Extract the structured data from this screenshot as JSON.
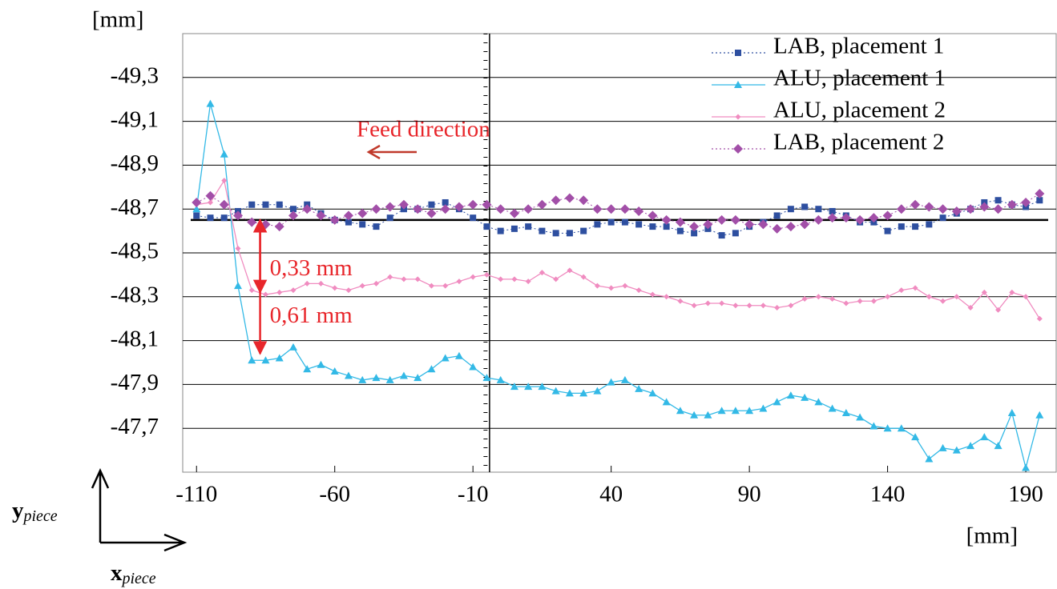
{
  "chart_data": {
    "type": "line",
    "y_label": "[mm]",
    "x_label": "[mm]",
    "y_symbol": "y",
    "y_symbol_sub": "piece",
    "x_symbol": "x",
    "x_symbol_sub": "piece",
    "feed_label": "Feed direction",
    "xlim": [
      -115,
      201
    ],
    "ylim": [
      -47.5,
      -49.5
    ],
    "xticks": [
      -110,
      -60,
      -10,
      40,
      90,
      140,
      190
    ],
    "yticks": [
      {
        "value": -49.3,
        "label": "-49,3"
      },
      {
        "value": -49.1,
        "label": "-49,1"
      },
      {
        "value": -48.9,
        "label": "-48,9"
      },
      {
        "value": -48.7,
        "label": "-48,7"
      },
      {
        "value": -48.5,
        "label": "-48,5"
      },
      {
        "value": -48.3,
        "label": "-48,3"
      },
      {
        "value": -48.1,
        "label": "-48,1"
      },
      {
        "value": -47.9,
        "label": "-47,9"
      },
      {
        "value": -47.7,
        "label": "-47,7"
      }
    ],
    "grid": true,
    "legend": "top-right",
    "reference_y": -48.65,
    "reference_x": -4,
    "annotations": [
      {
        "text": "0,33 mm",
        "x": -87,
        "y_from": -48.65,
        "y_to": -48.32
      },
      {
        "text": "0,61 mm",
        "x": -87,
        "y_from": -48.65,
        "y_to": -48.04
      }
    ],
    "x": [
      -110,
      -105,
      -100,
      -95,
      -90,
      -85,
      -80,
      -75,
      -70,
      -65,
      -60,
      -55,
      -50,
      -45,
      -40,
      -35,
      -30,
      -25,
      -20,
      -15,
      -10,
      -5,
      0,
      5,
      10,
      15,
      20,
      25,
      30,
      35,
      40,
      45,
      50,
      55,
      60,
      65,
      70,
      75,
      80,
      85,
      90,
      95,
      100,
      105,
      110,
      115,
      120,
      125,
      130,
      135,
      140,
      145,
      150,
      155,
      160,
      165,
      170,
      175,
      180,
      185,
      190,
      195
    ],
    "series": [
      {
        "name": "LAB, placement 1",
        "color": "#2e4fa0",
        "marker": "square",
        "line": "dashed",
        "values": [
          -48.67,
          -48.66,
          -48.66,
          -48.69,
          -48.72,
          -48.72,
          -48.72,
          -48.7,
          -48.72,
          -48.68,
          -48.65,
          -48.64,
          -48.63,
          -48.62,
          -48.66,
          -48.7,
          -48.7,
          -48.72,
          -48.73,
          -48.7,
          -48.66,
          -48.62,
          -48.6,
          -48.61,
          -48.62,
          -48.6,
          -48.59,
          -48.59,
          -48.6,
          -48.63,
          -48.64,
          -48.64,
          -48.63,
          -48.62,
          -48.62,
          -48.6,
          -48.59,
          -48.61,
          -48.58,
          -48.59,
          -48.62,
          -48.64,
          -48.67,
          -48.7,
          -48.71,
          -48.7,
          -48.69,
          -48.67,
          -48.64,
          -48.64,
          -48.6,
          -48.62,
          -48.62,
          -48.63,
          -48.66,
          -48.68,
          -48.7,
          -48.73,
          -48.74,
          -48.72,
          -48.71,
          -48.74
        ]
      },
      {
        "name": "ALU, placement 1",
        "color": "#33b9e6",
        "marker": "triangle",
        "line": "solid",
        "values": [
          -48.7,
          -49.18,
          -48.95,
          -48.35,
          -48.01,
          -48.01,
          -48.02,
          -48.07,
          -47.97,
          -47.99,
          -47.96,
          -47.94,
          -47.92,
          -47.93,
          -47.92,
          -47.94,
          -47.93,
          -47.97,
          -48.02,
          -48.03,
          -47.98,
          -47.93,
          -47.92,
          -47.89,
          -47.89,
          -47.89,
          -47.87,
          -47.86,
          -47.86,
          -47.87,
          -47.91,
          -47.92,
          -47.88,
          -47.86,
          -47.82,
          -47.78,
          -47.76,
          -47.76,
          -47.78,
          -47.78,
          -47.78,
          -47.79,
          -47.82,
          -47.85,
          -47.84,
          -47.82,
          -47.79,
          -47.77,
          -47.75,
          -47.71,
          -47.7,
          -47.7,
          -47.66,
          -47.56,
          -47.61,
          -47.6,
          -47.62,
          -47.66,
          -47.62,
          -47.77,
          -47.52,
          -47.76
        ]
      },
      {
        "name": "ALU, placement 2",
        "color": "#f08cc0",
        "marker": "circle",
        "line": "solid",
        "values": [
          -48.72,
          -48.73,
          -48.83,
          -48.52,
          -48.33,
          -48.31,
          -48.32,
          -48.33,
          -48.36,
          -48.36,
          -48.34,
          -48.33,
          -48.35,
          -48.36,
          -48.39,
          -48.38,
          -48.38,
          -48.35,
          -48.35,
          -48.37,
          -48.39,
          -48.4,
          -48.38,
          -48.38,
          -48.37,
          -48.41,
          -48.38,
          -48.42,
          -48.39,
          -48.35,
          -48.34,
          -48.35,
          -48.33,
          -48.31,
          -48.3,
          -48.28,
          -48.26,
          -48.27,
          -48.27,
          -48.26,
          -48.26,
          -48.26,
          -48.25,
          -48.26,
          -48.29,
          -48.3,
          -48.29,
          -48.27,
          -48.28,
          -48.28,
          -48.3,
          -48.33,
          -48.34,
          -48.3,
          -48.28,
          -48.3,
          -48.25,
          -48.32,
          -48.24,
          -48.32,
          -48.3,
          -48.2
        ]
      },
      {
        "name": "LAB, placement 2",
        "color": "#a24fa8",
        "marker": "diamond",
        "line": "dashed",
        "values": [
          -48.73,
          -48.76,
          -48.72,
          -48.67,
          -48.64,
          -48.63,
          -48.62,
          -48.67,
          -48.7,
          -48.67,
          -48.65,
          -48.67,
          -48.68,
          -48.7,
          -48.71,
          -48.72,
          -48.7,
          -48.68,
          -48.7,
          -48.71,
          -48.72,
          -48.72,
          -48.7,
          -48.68,
          -48.7,
          -48.72,
          -48.74,
          -48.75,
          -48.74,
          -48.7,
          -48.7,
          -48.7,
          -48.69,
          -48.67,
          -48.65,
          -48.64,
          -48.62,
          -48.63,
          -48.65,
          -48.65,
          -48.63,
          -48.63,
          -48.61,
          -48.62,
          -48.63,
          -48.65,
          -48.66,
          -48.66,
          -48.65,
          -48.66,
          -48.67,
          -48.7,
          -48.72,
          -48.71,
          -48.7,
          -48.69,
          -48.7,
          -48.71,
          -48.7,
          -48.72,
          -48.73,
          -48.77
        ]
      }
    ]
  }
}
